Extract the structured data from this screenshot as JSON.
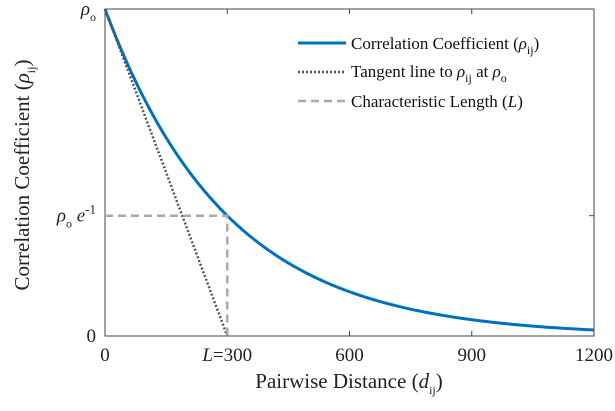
{
  "chart_data": {
    "type": "line",
    "xlabel": "Pairwise Distance",
    "xlabel_symbol": "d",
    "xlabel_sub": "ij",
    "ylabel": "Correlation Coefficient",
    "ylabel_symbol": "ρ",
    "ylabel_sub": "ij",
    "xlim": [
      0,
      1200
    ],
    "ylim": [
      0,
      1
    ],
    "x_ticks": [
      {
        "value": 0,
        "label": "0"
      },
      {
        "value": 300,
        "label": "L=300"
      },
      {
        "value": 600,
        "label": "600"
      },
      {
        "value": 900,
        "label": "900"
      },
      {
        "value": 1200,
        "label": "1200"
      }
    ],
    "y_ticks": [
      {
        "value": 0,
        "label": "0"
      },
      {
        "value": 0.3679,
        "label": "ρo e-1"
      },
      {
        "value": 1,
        "label": "ρo"
      }
    ],
    "characteristic_length": 300,
    "series": [
      {
        "name": "Correlation Coefficient (ρij)",
        "name_text": "Correlation Coefficient (",
        "name_symbol": "ρ",
        "name_sub": "ij",
        "name_close": ")",
        "style": "solid",
        "color": "#0072BD",
        "formula": "exp(-x/300)",
        "x": [
          0,
          100,
          200,
          300,
          400,
          500,
          600,
          700,
          800,
          900,
          1000,
          1100,
          1200
        ],
        "values": [
          1.0,
          0.7165,
          0.5134,
          0.3679,
          0.2636,
          0.1889,
          0.1353,
          0.097,
          0.0695,
          0.0498,
          0.0357,
          0.0255,
          0.0183
        ]
      },
      {
        "name": "Tangent line to ρij at ρo",
        "name_text": "Tangent line to ",
        "name_symbol": "ρ",
        "name_sub": "ij",
        "name_mid": " at ",
        "name_symbol2": "ρ",
        "name_sub2": "o",
        "style": "dotted",
        "color": "#555555",
        "x": [
          0,
          300
        ],
        "values": [
          1.0,
          0.0
        ]
      },
      {
        "name": "Characteristic Length (L)",
        "name_text": "Characteristic Length (",
        "name_italic": "L",
        "name_close": ")",
        "style": "dashed",
        "color": "#AAAAAA",
        "x": [
          0,
          300,
          300
        ],
        "values": [
          0.3679,
          0.3679,
          0.0
        ]
      }
    ],
    "legend_position": "top-right",
    "grid": false
  }
}
